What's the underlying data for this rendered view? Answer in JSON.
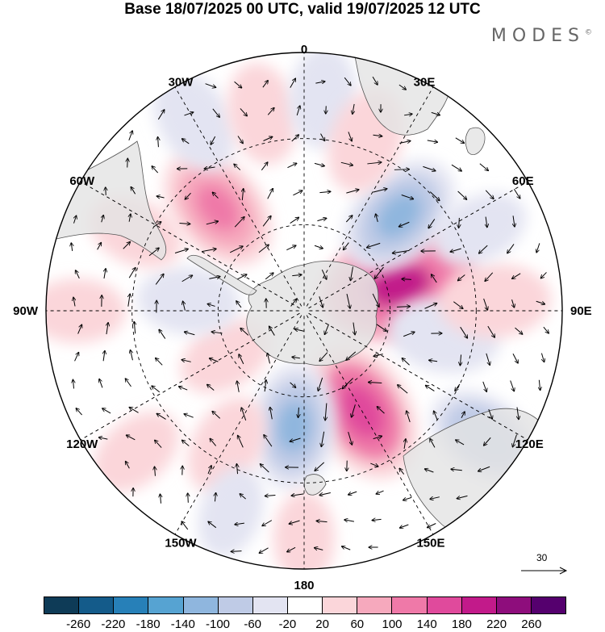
{
  "title": "Base 18/07/2025 00 UTC, valid 19/07/2025 12 UTC",
  "brand": "MODES",
  "brand_mark": "©",
  "longitude_labels": [
    {
      "text": "0",
      "angle": 0
    },
    {
      "text": "30E",
      "angle": 30
    },
    {
      "text": "60E",
      "angle": 60
    },
    {
      "text": "90E",
      "angle": 90
    },
    {
      "text": "120E",
      "angle": 120
    },
    {
      "text": "150E",
      "angle": 150
    },
    {
      "text": "180",
      "angle": 180
    },
    {
      "text": "150W",
      "angle": 210
    },
    {
      "text": "120W",
      "angle": 240
    },
    {
      "text": "90W",
      "angle": 270
    },
    {
      "text": "60W",
      "angle": 300
    },
    {
      "text": "30W",
      "angle": 330
    }
  ],
  "reference_vector": {
    "label": "30"
  },
  "colorbar": {
    "colors": [
      "#0e3b57",
      "#145b8a",
      "#2780b8",
      "#56a3d2",
      "#8fb6de",
      "#bfcbe6",
      "#e3e4f2",
      "#ffffff",
      "#fbd6da",
      "#f6a9bd",
      "#ef79a8",
      "#e04a9c",
      "#c21a8a",
      "#8e0d7c",
      "#55006e"
    ],
    "ticks": [
      "-260",
      "-220",
      "-180",
      "-140",
      "-100",
      "-60",
      "-20",
      "20",
      "60",
      "100",
      "140",
      "180",
      "220",
      "260"
    ]
  },
  "anomaly_blobs": [
    {
      "lon": 75,
      "r": 0.38,
      "value": 180
    },
    {
      "lon": 45,
      "r": 0.52,
      "value": -120
    },
    {
      "lon": 100,
      "r": 0.55,
      "value": -80
    },
    {
      "lon": 150,
      "r": 0.45,
      "value": 150
    },
    {
      "lon": 185,
      "r": 0.45,
      "value": -110
    },
    {
      "lon": 320,
      "r": 0.52,
      "value": 120
    },
    {
      "lon": 330,
      "r": 0.85,
      "value": -70
    },
    {
      "lon": 348,
      "r": 0.78,
      "value": 60
    },
    {
      "lon": 5,
      "r": 0.83,
      "value": -60
    },
    {
      "lon": 20,
      "r": 0.7,
      "value": 70
    },
    {
      "lon": 87,
      "r": 0.74,
      "value": 80
    },
    {
      "lon": 65,
      "r": 0.75,
      "value": -50
    },
    {
      "lon": 125,
      "r": 0.85,
      "value": -90
    },
    {
      "lon": 210,
      "r": 0.6,
      "value": 60
    },
    {
      "lon": 230,
      "r": 0.85,
      "value": 50
    },
    {
      "lon": 240,
      "r": 0.35,
      "value": 50
    },
    {
      "lon": 275,
      "r": 0.45,
      "value": -60
    },
    {
      "lon": 270,
      "r": 0.88,
      "value": 50
    },
    {
      "lon": 295,
      "r": 0.72,
      "value": 50
    },
    {
      "lon": 180,
      "r": 0.88,
      "value": 40
    },
    {
      "lon": 200,
      "r": 0.83,
      "value": -40
    }
  ]
}
